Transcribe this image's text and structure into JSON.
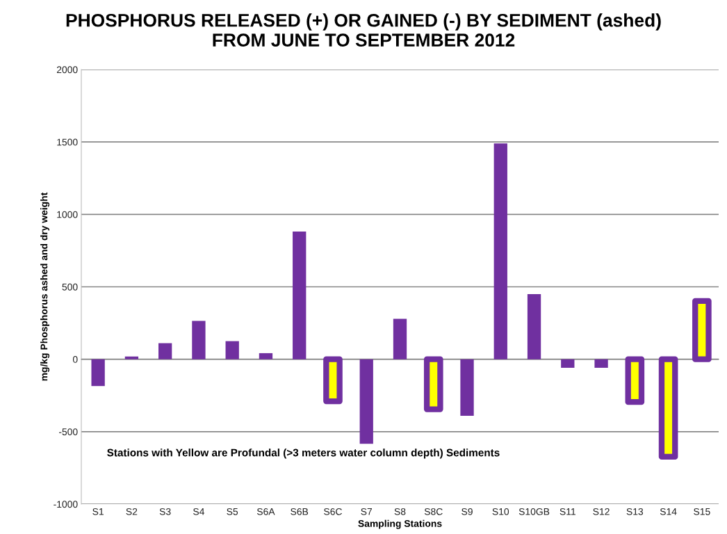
{
  "chart_data": {
    "type": "bar",
    "title": "PHOSPHORUS RELEASED (+) OR GAINED (-) BY SEDIMENT (ashed)\nFROM JUNE TO SEPTEMBER 2012",
    "xlabel": "Sampling Stations",
    "ylabel": "mg/kg Phosphorus ashed and dry weight",
    "categories": [
      "S1",
      "S2",
      "S3",
      "S4",
      "S5",
      "S6A",
      "S6B",
      "S6C",
      "S7",
      "S8",
      "S8C",
      "S9",
      "S10",
      "S10GB",
      "S11",
      "S12",
      "S13",
      "S14",
      "S15"
    ],
    "series": [
      {
        "color": "#7030a0",
        "colors": [
          "#7030a0",
          "#7030a0",
          "#7030a0",
          "#7030a0",
          "#7030a0",
          "#7030a0",
          "#7030a0",
          "#ffff00",
          "#7030a0",
          "#7030a0",
          "#ffff00",
          "#7030a0",
          "#7030a0",
          "#7030a0",
          "#7030a0",
          "#7030a0",
          "#ffff00",
          "#ffff00",
          "#ffff00"
        ],
        "values": [
          -185,
          19,
          111,
          265,
          125,
          42,
          882,
          -290,
          -584,
          279,
          -345,
          -390,
          1490,
          450,
          -59,
          -59,
          -295,
          -673,
          402
        ]
      }
    ],
    "ylim": [
      -1000,
      2000
    ],
    "yticks": [
      -1000,
      -500,
      0,
      500,
      1000,
      1500,
      2000
    ],
    "grid": "y",
    "annotations": [
      "Stations with Yellow are Profundal (>3 meters water column depth) Sediments"
    ]
  }
}
